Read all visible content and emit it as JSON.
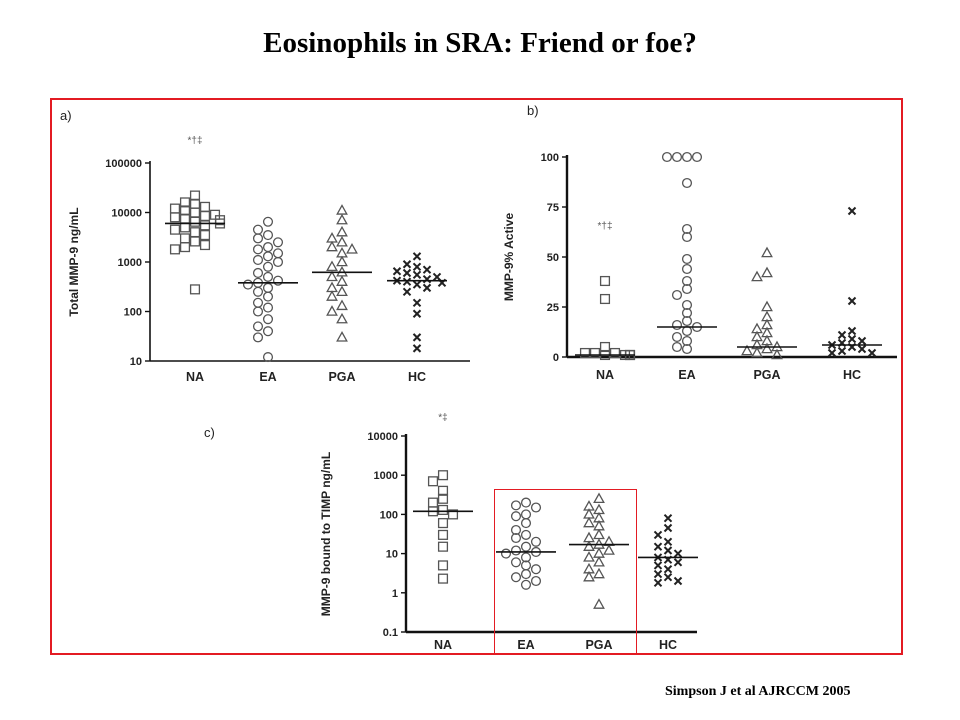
{
  "slide": {
    "title": "Eosinophils in  SRA:  Friend or foe?",
    "citation": "Simpson J  et al  AJRCCM 2005"
  },
  "colors": {
    "frame": "#e31b23",
    "marker": "#555555"
  },
  "chart_data": [
    {
      "panel": "a)",
      "type": "scatter",
      "ylabel": "Total MMP-9 ng/mL",
      "yscale": "log",
      "ylim": [
        10,
        100000
      ],
      "yticks": [
        "100000",
        "10000",
        "1000",
        "100",
        "10"
      ],
      "categories": [
        "NA",
        "EA",
        "PGA",
        "HC"
      ],
      "annotations": [
        {
          "category": "NA",
          "text": "*†‡",
          "y": 250000
        }
      ],
      "series": [
        {
          "category": "NA",
          "marker": "square",
          "median": 6000,
          "values": [
            22000,
            16000,
            15000,
            13000,
            12000,
            11000,
            10000,
            9000,
            8500,
            8000,
            7500,
            7000,
            6500,
            6000,
            5500,
            5000,
            4500,
            4000,
            3500,
            3000,
            2600,
            2200,
            2000,
            1800,
            280
          ]
        },
        {
          "category": "EA",
          "marker": "circle",
          "median": 380,
          "values": [
            6500,
            4500,
            3500,
            3000,
            2500,
            2000,
            1800,
            1500,
            1300,
            1100,
            1000,
            800,
            600,
            500,
            420,
            380,
            350,
            300,
            250,
            200,
            150,
            120,
            100,
            70,
            50,
            40,
            30,
            12
          ]
        },
        {
          "category": "PGA",
          "marker": "triangle",
          "median": 620,
          "values": [
            11000,
            7000,
            4000,
            3000,
            2500,
            2000,
            1800,
            1500,
            1000,
            800,
            620,
            500,
            400,
            300,
            250,
            200,
            130,
            100,
            70,
            30
          ]
        },
        {
          "category": "HC",
          "marker": "cross",
          "median": 420,
          "values": [
            1300,
            900,
            800,
            700,
            650,
            600,
            550,
            500,
            450,
            420,
            400,
            380,
            350,
            300,
            250,
            150,
            90,
            30,
            18
          ]
        }
      ]
    },
    {
      "panel": "b)",
      "type": "scatter",
      "ylabel": "MMP-9% Active",
      "yscale": "linear",
      "ylim": [
        0,
        100
      ],
      "yticks": [
        "100",
        "75",
        "50",
        "25",
        "0"
      ],
      "categories": [
        "NA",
        "EA",
        "PGA",
        "HC"
      ],
      "annotations": [
        {
          "category": "NA",
          "text": "*†‡",
          "y": 64
        }
      ],
      "series": [
        {
          "category": "NA",
          "marker": "square",
          "median": 1,
          "values": [
            38,
            29,
            5,
            2,
            2,
            2,
            1,
            1,
            1,
            1,
            1
          ]
        },
        {
          "category": "EA",
          "marker": "circle",
          "median": 15,
          "values": [
            100,
            100,
            100,
            100,
            87,
            64,
            60,
            49,
            44,
            38,
            34,
            31,
            26,
            22,
            18,
            16,
            15,
            13,
            10,
            8,
            5,
            4
          ]
        },
        {
          "category": "PGA",
          "marker": "triangle",
          "median": 5,
          "values": [
            52,
            42,
            40,
            25,
            20,
            16,
            14,
            12,
            10,
            8,
            6,
            5,
            4,
            3,
            2,
            1
          ]
        },
        {
          "category": "HC",
          "marker": "cross",
          "median": 6,
          "values": [
            73,
            28,
            13,
            11,
            9,
            8,
            7,
            6,
            5,
            4,
            3,
            2,
            2
          ]
        }
      ]
    },
    {
      "panel": "c)",
      "type": "scatter",
      "ylabel": "MMP-9 bound to TIMP ng/mL",
      "yscale": "log",
      "ylim": [
        0.1,
        10000
      ],
      "yticks": [
        "10000",
        "1000",
        "100",
        "10",
        "1",
        "0.1"
      ],
      "categories": [
        "NA",
        "EA",
        "PGA",
        "HC"
      ],
      "annotations": [
        {
          "category": "NA",
          "text": "*‡",
          "y": 25000
        }
      ],
      "series": [
        {
          "category": "NA",
          "marker": "square",
          "median": 120,
          "values": [
            1000,
            700,
            400,
            250,
            200,
            130,
            120,
            100,
            60,
            30,
            15,
            5,
            2.3
          ]
        },
        {
          "category": "EA",
          "marker": "circle",
          "median": 11,
          "values": [
            200,
            170,
            150,
            100,
            90,
            60,
            40,
            30,
            25,
            20,
            15,
            12,
            11,
            10,
            8,
            6,
            5,
            4,
            3,
            2.5,
            2,
            1.6
          ]
        },
        {
          "category": "PGA",
          "marker": "triangle",
          "median": 17,
          "values": [
            250,
            160,
            130,
            100,
            80,
            60,
            50,
            30,
            25,
            20,
            17,
            15,
            12,
            10,
            8,
            6,
            4,
            3,
            2.5,
            0.5
          ]
        },
        {
          "category": "HC",
          "marker": "cross",
          "median": 8,
          "values": [
            80,
            45,
            30,
            20,
            15,
            12,
            10,
            8,
            7,
            6,
            5,
            4,
            3,
            2.5,
            2,
            1.8
          ]
        }
      ]
    }
  ]
}
